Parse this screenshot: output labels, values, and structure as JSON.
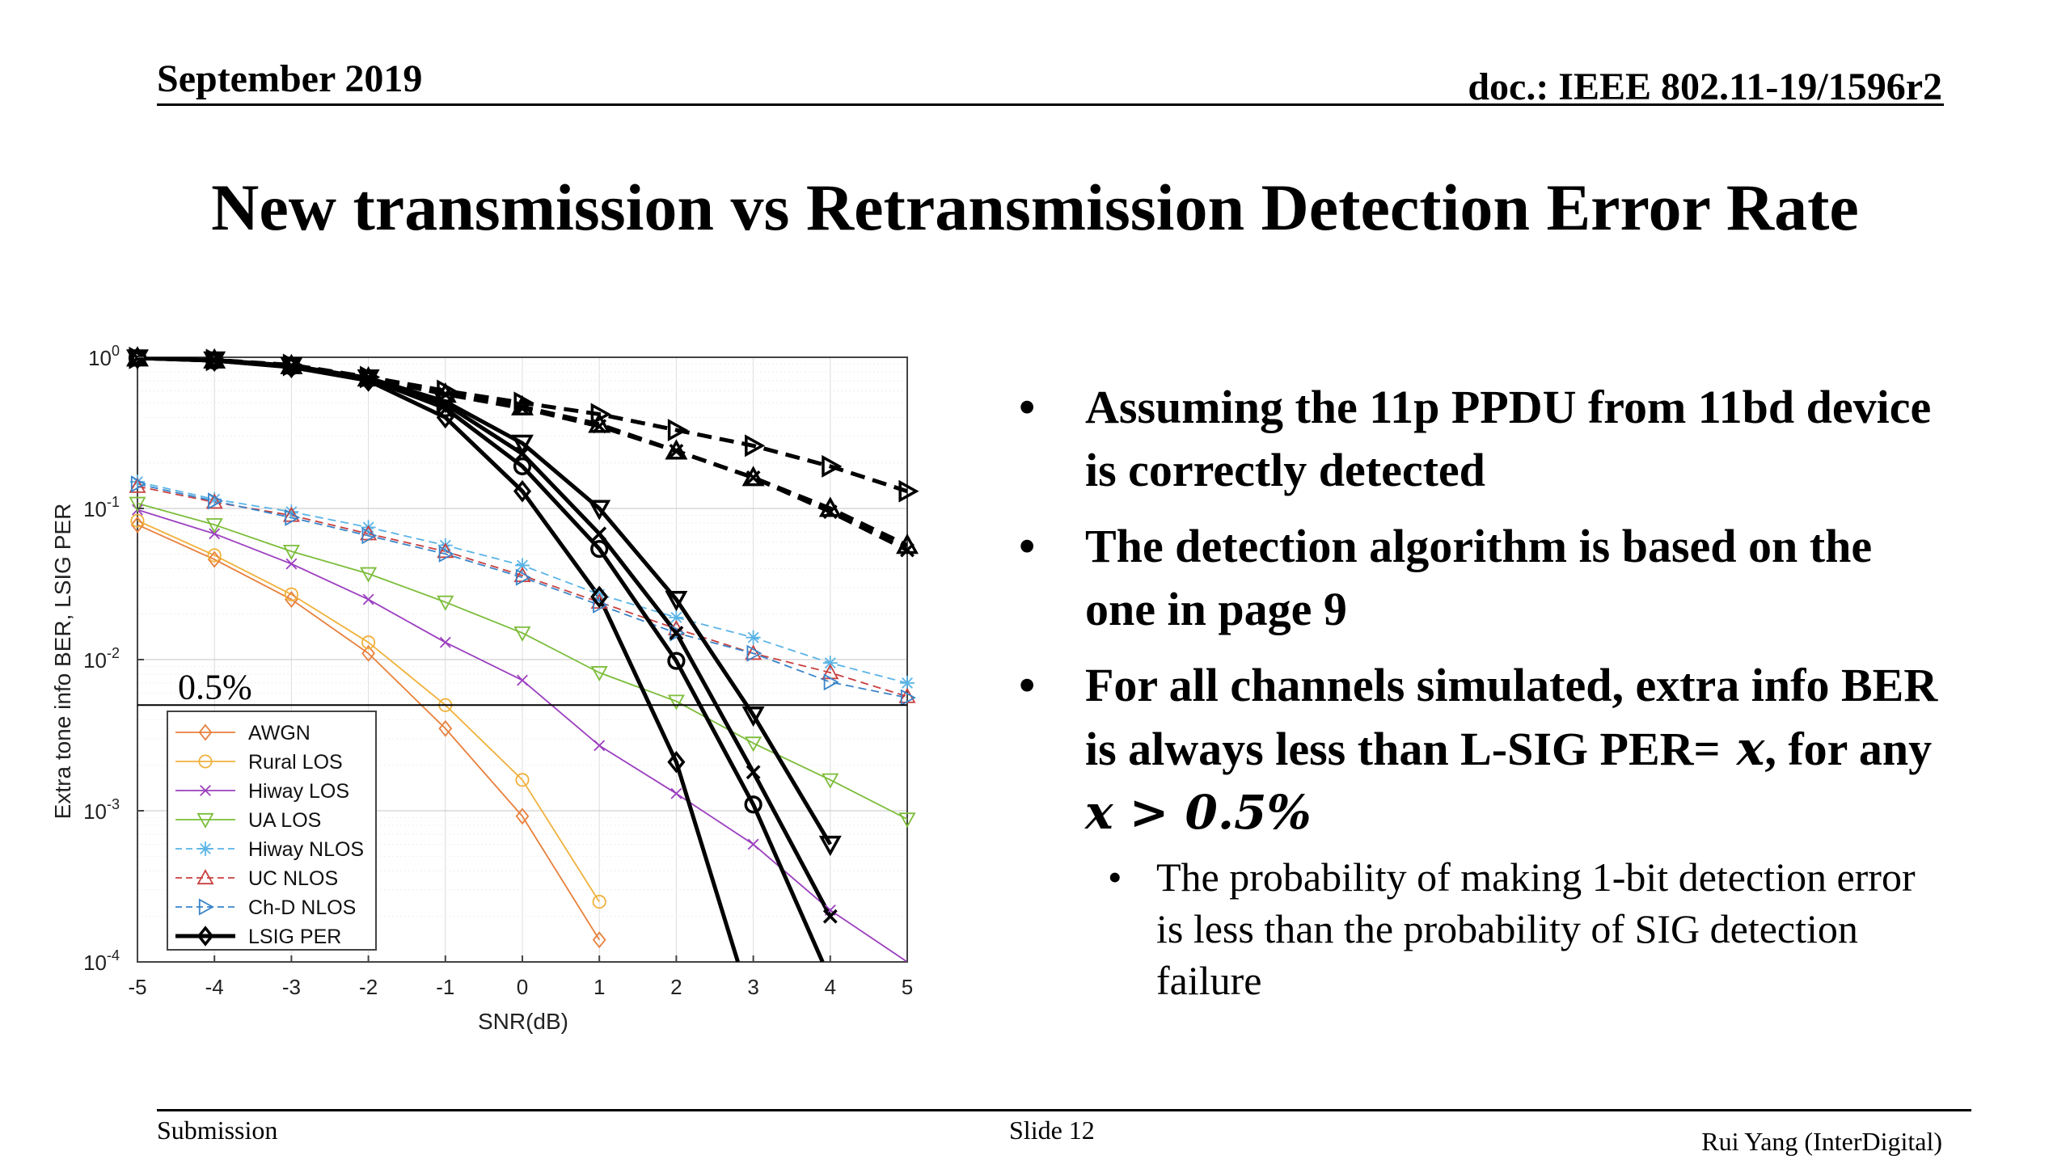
{
  "header": {
    "date": "September 2019",
    "doc": "doc.: IEEE 802.11-19/1596r2"
  },
  "title": "New transmission vs Retransmission Detection Error Rate",
  "bullets": [
    {
      "text": "Assuming the 11p PPDU from 11bd device is correctly detected"
    },
    {
      "text": "The detection algorithm is based on the one in page 9"
    },
    {
      "text_a": "For all channels simulated, extra info BER is always less than L-SIG PER=",
      "math1": " x",
      "text_b": ", for any ",
      "math2": "x > 0.5%"
    }
  ],
  "sub_bullet": "The probability of making 1-bit detection error is less than the probability of SIG detection failure",
  "footer": {
    "left": "Submission",
    "center": "Slide 12",
    "right": "Rui Yang (InterDigital)"
  },
  "chart_data": {
    "type": "line",
    "xlabel": "SNR(dB)",
    "ylabel": "Extra tone info BER, LSIG PER",
    "x_ticks": [
      "-5",
      "-4",
      "-3",
      "-2",
      "-1",
      "0",
      "1",
      "2",
      "3",
      "4",
      "5"
    ],
    "y_ticks": [
      "10^0",
      "10^-1",
      "10^-2",
      "10^-3",
      "10^-4"
    ],
    "xlim": [
      -5,
      5
    ],
    "ylim": [
      0.0001,
      1
    ],
    "yscale": "log",
    "grid": true,
    "legend_position": "bottom-left",
    "threshold": {
      "value": 0.005,
      "label": "0.5%"
    },
    "series": [
      {
        "name": "AWGN",
        "color": "#e8803c",
        "dash": "solid",
        "marker": "diamond",
        "points": [
          [
            -5,
            0.078
          ],
          [
            -4,
            0.046
          ],
          [
            -3,
            0.025
          ],
          [
            -2,
            0.011
          ],
          [
            -1,
            0.0035
          ],
          [
            0,
            0.00092
          ],
          [
            1,
            0.00014
          ]
        ]
      },
      {
        "name": "Rural LOS",
        "color": "#f0b13c",
        "dash": "solid",
        "marker": "circle",
        "points": [
          [
            -5,
            0.083
          ],
          [
            -4,
            0.049
          ],
          [
            -3,
            0.027
          ],
          [
            -2,
            0.013
          ],
          [
            -1,
            0.005
          ],
          [
            0,
            0.0016
          ],
          [
            1,
            0.00025
          ]
        ]
      },
      {
        "name": "Hiway LOS",
        "color": "#9c3fbf",
        "dash": "solid",
        "marker": "x",
        "points": [
          [
            -5,
            0.098
          ],
          [
            -4,
            0.068
          ],
          [
            -3,
            0.043
          ],
          [
            -2,
            0.025
          ],
          [
            -1,
            0.013
          ],
          [
            0,
            0.0073
          ],
          [
            1,
            0.0027
          ],
          [
            2,
            0.0013
          ],
          [
            3,
            0.0006
          ],
          [
            4,
            0.00022
          ],
          [
            5,
            0.0001
          ]
        ]
      },
      {
        "name": "UA LOS",
        "color": "#7cbd3a",
        "dash": "solid",
        "marker": "triangle-down",
        "points": [
          [
            -5,
            0.108
          ],
          [
            -4,
            0.078
          ],
          [
            -3,
            0.052
          ],
          [
            -2,
            0.037
          ],
          [
            -1,
            0.024
          ],
          [
            0,
            0.015
          ],
          [
            1,
            0.0082
          ],
          [
            2,
            0.0053
          ],
          [
            3,
            0.0028
          ],
          [
            4,
            0.0016
          ],
          [
            5,
            0.00088
          ]
        ]
      },
      {
        "name": "Hiway NLOS",
        "color": "#5ab4e6",
        "dash": "dashed",
        "marker": "asterisk",
        "points": [
          [
            -5,
            0.15
          ],
          [
            -4,
            0.115
          ],
          [
            -3,
            0.095
          ],
          [
            -2,
            0.075
          ],
          [
            -1,
            0.057
          ],
          [
            0,
            0.042
          ],
          [
            1,
            0.027
          ],
          [
            2,
            0.019
          ],
          [
            3,
            0.014
          ],
          [
            4,
            0.0095
          ],
          [
            5,
            0.007
          ]
        ]
      },
      {
        "name": "UC NLOS",
        "color": "#c94040",
        "dash": "dashed",
        "marker": "triangle-up",
        "points": [
          [
            -5,
            0.14
          ],
          [
            -4,
            0.11
          ],
          [
            -3,
            0.09
          ],
          [
            -2,
            0.068
          ],
          [
            -1,
            0.052
          ],
          [
            0,
            0.036
          ],
          [
            1,
            0.024
          ],
          [
            2,
            0.016
          ],
          [
            3,
            0.011
          ],
          [
            4,
            0.0082
          ],
          [
            5,
            0.0057
          ]
        ]
      },
      {
        "name": "Ch-D NLOS",
        "color": "#3a84c9",
        "dash": "dashed",
        "marker": "triangle-right",
        "points": [
          [
            -5,
            0.145
          ],
          [
            -4,
            0.112
          ],
          [
            -3,
            0.087
          ],
          [
            -2,
            0.066
          ],
          [
            -1,
            0.05
          ],
          [
            0,
            0.035
          ],
          [
            1,
            0.023
          ],
          [
            2,
            0.015
          ],
          [
            3,
            0.011
          ],
          [
            4,
            0.0071
          ],
          [
            5,
            0.0056
          ]
        ]
      },
      {
        "name": "LSIG PER",
        "color": "#000000",
        "dash": "solid",
        "marker": "diamond",
        "bold": true,
        "points": [
          [
            -5,
            0.99
          ],
          [
            -4,
            0.95
          ],
          [
            -3,
            0.86
          ],
          [
            -2,
            0.7
          ],
          [
            -1,
            0.4
          ],
          [
            0,
            0.13
          ],
          [
            1,
            0.026
          ],
          [
            2,
            0.0021
          ],
          [
            2.8,
            0.0001
          ]
        ]
      },
      {
        "color": "#000000",
        "dash": "solid",
        "marker": "circle",
        "bold": true,
        "points": [
          [
            -5,
            0.99
          ],
          [
            -4,
            0.95
          ],
          [
            -3,
            0.87
          ],
          [
            -2,
            0.72
          ],
          [
            -1,
            0.46
          ],
          [
            0,
            0.19
          ],
          [
            1,
            0.054
          ],
          [
            2,
            0.0098
          ],
          [
            3,
            0.0011
          ],
          [
            3.9,
            0.0001
          ]
        ]
      },
      {
        "color": "#000000",
        "dash": "solid",
        "marker": "x",
        "bold": true,
        "points": [
          [
            -5,
            0.99
          ],
          [
            -4,
            0.95
          ],
          [
            -3,
            0.87
          ],
          [
            -2,
            0.73
          ],
          [
            -1,
            0.49
          ],
          [
            0,
            0.23
          ],
          [
            1,
            0.068
          ],
          [
            2,
            0.015
          ],
          [
            3,
            0.0018
          ],
          [
            4,
            0.0002
          ]
        ]
      },
      {
        "color": "#000000",
        "dash": "solid",
        "marker": "triangle-down",
        "bold": true,
        "points": [
          [
            -5,
            0.99
          ],
          [
            -4,
            0.96
          ],
          [
            -3,
            0.88
          ],
          [
            -2,
            0.73
          ],
          [
            -1,
            0.51
          ],
          [
            0,
            0.27
          ],
          [
            1,
            0.1
          ],
          [
            2,
            0.025
          ],
          [
            3,
            0.0043
          ],
          [
            4,
            0.0006
          ]
        ]
      },
      {
        "color": "#000000",
        "dash": "dashed",
        "marker": "triangle-right",
        "bold": true,
        "points": [
          [
            -5,
            0.99
          ],
          [
            -4,
            0.96
          ],
          [
            -3,
            0.89
          ],
          [
            -2,
            0.74
          ],
          [
            -1,
            0.6
          ],
          [
            0,
            0.5
          ],
          [
            1,
            0.42
          ],
          [
            2,
            0.33
          ],
          [
            3,
            0.26
          ],
          [
            4,
            0.19
          ],
          [
            5,
            0.13
          ]
        ]
      },
      {
        "color": "#000000",
        "dash": "dashed",
        "marker": "triangle-up",
        "bold": true,
        "points": [
          [
            -5,
            0.99
          ],
          [
            -4,
            0.96
          ],
          [
            -3,
            0.88
          ],
          [
            -2,
            0.73
          ],
          [
            -1,
            0.57
          ],
          [
            0,
            0.47
          ],
          [
            1,
            0.36
          ],
          [
            2,
            0.24
          ],
          [
            3,
            0.16
          ],
          [
            4,
            0.1
          ],
          [
            5,
            0.057
          ]
        ]
      },
      {
        "color": "#000000",
        "dash": "dashed",
        "marker": "x",
        "bold": true,
        "points": [
          [
            -5,
            0.99
          ],
          [
            -4,
            0.96
          ],
          [
            -3,
            0.88
          ],
          [
            -2,
            0.73
          ],
          [
            -1,
            0.57
          ],
          [
            0,
            0.46
          ],
          [
            1,
            0.35
          ],
          [
            2,
            0.24
          ],
          [
            3,
            0.16
          ],
          [
            4,
            0.095
          ],
          [
            5,
            0.053
          ]
        ]
      }
    ]
  }
}
